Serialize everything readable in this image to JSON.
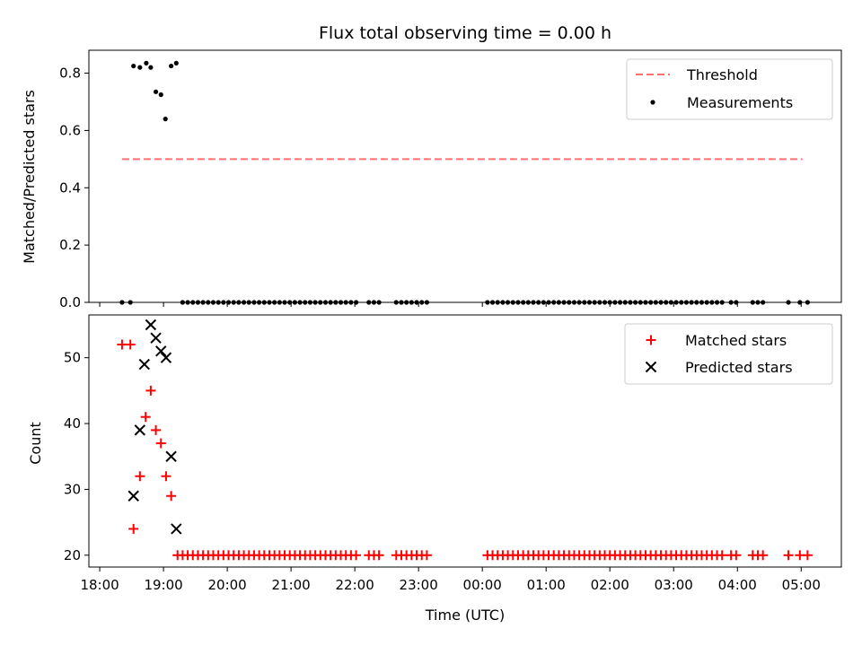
{
  "chart_data": [
    {
      "type": "scatter",
      "title": "Flux total observing time = 0.00 h",
      "xlabel": "",
      "ylabel": "Matched/Predicted stars",
      "x_unit": "hours after 18:00 UTC",
      "xlim": [
        -0.17,
        11.63
      ],
      "ylim": [
        0,
        0.88
      ],
      "yticks": [
        0.0,
        0.2,
        0.4,
        0.6,
        0.8
      ],
      "ytick_labels": [
        "0.0",
        "0.2",
        "0.4",
        "0.6",
        "0.8"
      ],
      "legend_position": "top-right",
      "threshold": {
        "name": "Threshold",
        "y": 0.5,
        "x_start": 0.35,
        "x_end": 11.02,
        "color": "#ff7070"
      },
      "measurements": {
        "name": "Measurements",
        "color": "#000000",
        "points": [
          [
            0.35,
            0.0
          ],
          [
            0.48,
            0.0
          ],
          [
            0.53,
            0.825
          ],
          [
            0.63,
            0.82
          ],
          [
            0.73,
            0.835
          ],
          [
            0.8,
            0.82
          ],
          [
            0.88,
            0.735
          ],
          [
            0.96,
            0.725
          ],
          [
            1.03,
            0.64
          ],
          [
            1.12,
            0.825
          ],
          [
            1.2,
            0.835
          ],
          [
            1.3,
            0.0
          ],
          [
            1.38,
            0.0
          ],
          [
            1.46,
            0.0
          ],
          [
            1.54,
            0.0
          ],
          [
            1.62,
            0.0
          ],
          [
            1.7,
            0.0
          ],
          [
            1.78,
            0.0
          ],
          [
            1.86,
            0.0
          ],
          [
            1.94,
            0.0
          ],
          [
            2.02,
            0.0
          ],
          [
            2.1,
            0.0
          ],
          [
            2.18,
            0.0
          ],
          [
            2.26,
            0.0
          ],
          [
            2.34,
            0.0
          ],
          [
            2.42,
            0.0
          ],
          [
            2.5,
            0.0
          ],
          [
            2.58,
            0.0
          ],
          [
            2.66,
            0.0
          ],
          [
            2.74,
            0.0
          ],
          [
            2.82,
            0.0
          ],
          [
            2.9,
            0.0
          ],
          [
            2.98,
            0.0
          ],
          [
            3.06,
            0.0
          ],
          [
            3.14,
            0.0
          ],
          [
            3.22,
            0.0
          ],
          [
            3.3,
            0.0
          ],
          [
            3.38,
            0.0
          ],
          [
            3.46,
            0.0
          ],
          [
            3.54,
            0.0
          ],
          [
            3.62,
            0.0
          ],
          [
            3.7,
            0.0
          ],
          [
            3.78,
            0.0
          ],
          [
            3.86,
            0.0
          ],
          [
            3.94,
            0.0
          ],
          [
            4.02,
            0.0
          ],
          [
            4.22,
            0.0
          ],
          [
            4.3,
            0.0
          ],
          [
            4.38,
            0.0
          ],
          [
            4.65,
            0.0
          ],
          [
            4.73,
            0.0
          ],
          [
            4.81,
            0.0
          ],
          [
            4.89,
            0.0
          ],
          [
            4.97,
            0.0
          ],
          [
            5.05,
            0.0
          ],
          [
            5.13,
            0.0
          ],
          [
            6.08,
            0.0
          ],
          [
            6.16,
            0.0
          ],
          [
            6.24,
            0.0
          ],
          [
            6.32,
            0.0
          ],
          [
            6.4,
            0.0
          ],
          [
            6.48,
            0.0
          ],
          [
            6.56,
            0.0
          ],
          [
            6.64,
            0.0
          ],
          [
            6.72,
            0.0
          ],
          [
            6.8,
            0.0
          ],
          [
            6.88,
            0.0
          ],
          [
            6.96,
            0.0
          ],
          [
            7.04,
            0.0
          ],
          [
            7.12,
            0.0
          ],
          [
            7.2,
            0.0
          ],
          [
            7.28,
            0.0
          ],
          [
            7.36,
            0.0
          ],
          [
            7.44,
            0.0
          ],
          [
            7.52,
            0.0
          ],
          [
            7.6,
            0.0
          ],
          [
            7.68,
            0.0
          ],
          [
            7.76,
            0.0
          ],
          [
            7.84,
            0.0
          ],
          [
            7.92,
            0.0
          ],
          [
            8.0,
            0.0
          ],
          [
            8.08,
            0.0
          ],
          [
            8.16,
            0.0
          ],
          [
            8.24,
            0.0
          ],
          [
            8.32,
            0.0
          ],
          [
            8.4,
            0.0
          ],
          [
            8.48,
            0.0
          ],
          [
            8.56,
            0.0
          ],
          [
            8.64,
            0.0
          ],
          [
            8.72,
            0.0
          ],
          [
            8.8,
            0.0
          ],
          [
            8.88,
            0.0
          ],
          [
            8.96,
            0.0
          ],
          [
            9.04,
            0.0
          ],
          [
            9.12,
            0.0
          ],
          [
            9.2,
            0.0
          ],
          [
            9.28,
            0.0
          ],
          [
            9.36,
            0.0
          ],
          [
            9.44,
            0.0
          ],
          [
            9.52,
            0.0
          ],
          [
            9.6,
            0.0
          ],
          [
            9.68,
            0.0
          ],
          [
            9.76,
            0.0
          ],
          [
            9.9,
            0.0
          ],
          [
            9.98,
            0.0
          ],
          [
            10.24,
            0.0
          ],
          [
            10.32,
            0.0
          ],
          [
            10.4,
            0.0
          ],
          [
            10.8,
            0.0
          ],
          [
            10.98,
            0.0
          ],
          [
            11.1,
            0.0
          ]
        ]
      }
    },
    {
      "type": "scatter",
      "title": "",
      "xlabel": "Time (UTC)",
      "ylabel": "Count",
      "x_unit": "hours after 18:00 UTC",
      "xlim": [
        -0.17,
        11.63
      ],
      "ylim": [
        18.2,
        56.5
      ],
      "yticks": [
        20,
        30,
        40,
        50
      ],
      "ytick_labels": [
        "20",
        "30",
        "40",
        "50"
      ],
      "xticks": [
        0,
        1,
        2,
        3,
        4,
        5,
        6,
        7,
        8,
        9,
        10,
        11
      ],
      "xtick_labels": [
        "18:00",
        "19:00",
        "20:00",
        "21:00",
        "22:00",
        "23:00",
        "00:00",
        "01:00",
        "02:00",
        "03:00",
        "04:00",
        "05:00"
      ],
      "legend_position": "top-right",
      "matched": {
        "name": "Matched stars",
        "color": "#ff0000",
        "points": [
          [
            0.35,
            52
          ],
          [
            0.48,
            52
          ],
          [
            0.53,
            24
          ],
          [
            0.63,
            32
          ],
          [
            0.72,
            41
          ],
          [
            0.8,
            45
          ],
          [
            0.88,
            39
          ],
          [
            0.96,
            37
          ],
          [
            1.04,
            32
          ],
          [
            1.12,
            29
          ],
          [
            1.22,
            20
          ],
          [
            1.3,
            20
          ],
          [
            1.38,
            20
          ],
          [
            1.46,
            20
          ],
          [
            1.54,
            20
          ],
          [
            1.62,
            20
          ],
          [
            1.7,
            20
          ],
          [
            1.78,
            20
          ],
          [
            1.86,
            20
          ],
          [
            1.94,
            20
          ],
          [
            2.02,
            20
          ],
          [
            2.1,
            20
          ],
          [
            2.18,
            20
          ],
          [
            2.26,
            20
          ],
          [
            2.34,
            20
          ],
          [
            2.42,
            20
          ],
          [
            2.5,
            20
          ],
          [
            2.58,
            20
          ],
          [
            2.66,
            20
          ],
          [
            2.74,
            20
          ],
          [
            2.82,
            20
          ],
          [
            2.9,
            20
          ],
          [
            2.98,
            20
          ],
          [
            3.06,
            20
          ],
          [
            3.14,
            20
          ],
          [
            3.22,
            20
          ],
          [
            3.3,
            20
          ],
          [
            3.38,
            20
          ],
          [
            3.46,
            20
          ],
          [
            3.54,
            20
          ],
          [
            3.62,
            20
          ],
          [
            3.7,
            20
          ],
          [
            3.78,
            20
          ],
          [
            3.86,
            20
          ],
          [
            3.94,
            20
          ],
          [
            4.02,
            20
          ],
          [
            4.22,
            20
          ],
          [
            4.3,
            20
          ],
          [
            4.38,
            20
          ],
          [
            4.65,
            20
          ],
          [
            4.73,
            20
          ],
          [
            4.81,
            20
          ],
          [
            4.89,
            20
          ],
          [
            4.97,
            20
          ],
          [
            5.05,
            20
          ],
          [
            5.13,
            20
          ],
          [
            6.08,
            20
          ],
          [
            6.16,
            20
          ],
          [
            6.24,
            20
          ],
          [
            6.32,
            20
          ],
          [
            6.4,
            20
          ],
          [
            6.48,
            20
          ],
          [
            6.56,
            20
          ],
          [
            6.64,
            20
          ],
          [
            6.72,
            20
          ],
          [
            6.8,
            20
          ],
          [
            6.88,
            20
          ],
          [
            6.96,
            20
          ],
          [
            7.04,
            20
          ],
          [
            7.12,
            20
          ],
          [
            7.2,
            20
          ],
          [
            7.28,
            20
          ],
          [
            7.36,
            20
          ],
          [
            7.44,
            20
          ],
          [
            7.52,
            20
          ],
          [
            7.6,
            20
          ],
          [
            7.68,
            20
          ],
          [
            7.76,
            20
          ],
          [
            7.84,
            20
          ],
          [
            7.92,
            20
          ],
          [
            8.0,
            20
          ],
          [
            8.08,
            20
          ],
          [
            8.16,
            20
          ],
          [
            8.24,
            20
          ],
          [
            8.32,
            20
          ],
          [
            8.4,
            20
          ],
          [
            8.48,
            20
          ],
          [
            8.56,
            20
          ],
          [
            8.64,
            20
          ],
          [
            8.72,
            20
          ],
          [
            8.8,
            20
          ],
          [
            8.88,
            20
          ],
          [
            8.96,
            20
          ],
          [
            9.04,
            20
          ],
          [
            9.12,
            20
          ],
          [
            9.2,
            20
          ],
          [
            9.28,
            20
          ],
          [
            9.36,
            20
          ],
          [
            9.44,
            20
          ],
          [
            9.52,
            20
          ],
          [
            9.6,
            20
          ],
          [
            9.68,
            20
          ],
          [
            9.76,
            20
          ],
          [
            9.9,
            20
          ],
          [
            9.98,
            20
          ],
          [
            10.24,
            20
          ],
          [
            10.32,
            20
          ],
          [
            10.4,
            20
          ],
          [
            10.8,
            20
          ],
          [
            10.98,
            20
          ],
          [
            11.1,
            20
          ]
        ]
      },
      "predicted": {
        "name": "Predicted stars",
        "color": "#000000",
        "points": [
          [
            0.53,
            29
          ],
          [
            0.63,
            39
          ],
          [
            0.7,
            49
          ],
          [
            0.8,
            55
          ],
          [
            0.88,
            53
          ],
          [
            0.96,
            51
          ],
          [
            1.04,
            50
          ],
          [
            1.12,
            35
          ],
          [
            1.2,
            24
          ]
        ]
      }
    }
  ]
}
